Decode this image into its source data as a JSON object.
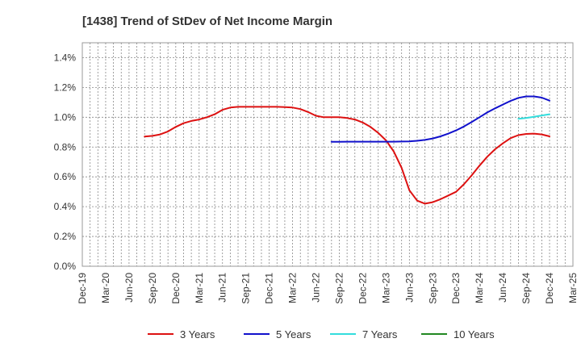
{
  "chart_data": {
    "type": "line",
    "title": "[1438]  Trend of StDev of Net Income Margin",
    "xlabel": "",
    "ylabel": "",
    "x_ticks": [
      "Dec-19",
      "Mar-20",
      "Jun-20",
      "Sep-20",
      "Dec-20",
      "Mar-21",
      "Jun-21",
      "Sep-21",
      "Dec-21",
      "Mar-22",
      "Jun-22",
      "Sep-22",
      "Dec-22",
      "Mar-23",
      "Jun-23",
      "Sep-23",
      "Dec-23",
      "Mar-24",
      "Jun-24",
      "Sep-24",
      "Dec-24",
      "Mar-25"
    ],
    "y_ticks": [
      "0.0%",
      "0.2%",
      "0.4%",
      "0.6%",
      "0.8%",
      "1.0%",
      "1.2%",
      "1.4%"
    ],
    "ylim": [
      0,
      1.5
    ],
    "y_unit": "%",
    "grid": true,
    "legend_position": "bottom",
    "series": [
      {
        "name": "3 Years",
        "color": "#dd1111",
        "points": [
          [
            "Aug-20",
            0.87
          ],
          [
            "Sep-20",
            0.875
          ],
          [
            "Oct-20",
            0.885
          ],
          [
            "Nov-20",
            0.905
          ],
          [
            "Dec-20",
            0.935
          ],
          [
            "Jan-21",
            0.96
          ],
          [
            "Feb-21",
            0.975
          ],
          [
            "Mar-21",
            0.985
          ],
          [
            "Apr-21",
            1.0
          ],
          [
            "May-21",
            1.02
          ],
          [
            "Jun-21",
            1.05
          ],
          [
            "Jul-21",
            1.065
          ],
          [
            "Aug-21",
            1.07
          ],
          [
            "Sep-21",
            1.07
          ],
          [
            "Oct-21",
            1.07
          ],
          [
            "Nov-21",
            1.07
          ],
          [
            "Dec-21",
            1.07
          ],
          [
            "Jan-22",
            1.07
          ],
          [
            "Feb-22",
            1.068
          ],
          [
            "Mar-22",
            1.065
          ],
          [
            "Apr-22",
            1.055
          ],
          [
            "May-22",
            1.035
          ],
          [
            "Jun-22",
            1.01
          ],
          [
            "Jul-22",
            1.0
          ],
          [
            "Aug-22",
            1.0
          ],
          [
            "Sep-22",
            1.0
          ],
          [
            "Oct-22",
            0.995
          ],
          [
            "Nov-22",
            0.985
          ],
          [
            "Dec-22",
            0.965
          ],
          [
            "Jan-23",
            0.935
          ],
          [
            "Feb-23",
            0.895
          ],
          [
            "Mar-23",
            0.845
          ],
          [
            "Apr-23",
            0.77
          ],
          [
            "May-23",
            0.66
          ],
          [
            "Jun-23",
            0.51
          ],
          [
            "Jul-23",
            0.44
          ],
          [
            "Aug-23",
            0.42
          ],
          [
            "Sep-23",
            0.43
          ],
          [
            "Oct-23",
            0.45
          ],
          [
            "Nov-23",
            0.475
          ],
          [
            "Dec-23",
            0.5
          ],
          [
            "Jan-24",
            0.55
          ],
          [
            "Feb-24",
            0.61
          ],
          [
            "Mar-24",
            0.675
          ],
          [
            "Apr-24",
            0.735
          ],
          [
            "May-24",
            0.785
          ],
          [
            "Jun-24",
            0.825
          ],
          [
            "Jul-24",
            0.86
          ],
          [
            "Aug-24",
            0.88
          ],
          [
            "Sep-24",
            0.888
          ],
          [
            "Oct-24",
            0.89
          ],
          [
            "Nov-24",
            0.885
          ],
          [
            "Dec-24",
            0.872
          ]
        ]
      },
      {
        "name": "5 Years",
        "color": "#1111cc",
        "points": [
          [
            "Aug-22",
            0.835
          ],
          [
            "Sep-22",
            0.835
          ],
          [
            "Oct-22",
            0.836
          ],
          [
            "Nov-22",
            0.836
          ],
          [
            "Dec-22",
            0.836
          ],
          [
            "Jan-23",
            0.836
          ],
          [
            "Feb-23",
            0.836
          ],
          [
            "Mar-23",
            0.836
          ],
          [
            "Apr-23",
            0.836
          ],
          [
            "May-23",
            0.837
          ],
          [
            "Jun-23",
            0.838
          ],
          [
            "Jul-23",
            0.842
          ],
          [
            "Aug-23",
            0.848
          ],
          [
            "Sep-23",
            0.858
          ],
          [
            "Oct-23",
            0.872
          ],
          [
            "Nov-23",
            0.89
          ],
          [
            "Dec-23",
            0.912
          ],
          [
            "Jan-24",
            0.938
          ],
          [
            "Feb-24",
            0.968
          ],
          [
            "Mar-24",
            1.0
          ],
          [
            "Apr-24",
            1.032
          ],
          [
            "May-24",
            1.06
          ],
          [
            "Jun-24",
            1.085
          ],
          [
            "Jul-24",
            1.11
          ],
          [
            "Aug-24",
            1.13
          ],
          [
            "Sep-24",
            1.14
          ],
          [
            "Oct-24",
            1.14
          ],
          [
            "Nov-24",
            1.132
          ],
          [
            "Dec-24",
            1.112
          ]
        ]
      },
      {
        "name": "7 Years",
        "color": "#33dddd",
        "points": [
          [
            "Aug-24",
            0.99
          ],
          [
            "Sep-24",
            0.995
          ],
          [
            "Oct-24",
            1.003
          ],
          [
            "Nov-24",
            1.012
          ],
          [
            "Dec-24",
            1.02
          ]
        ]
      },
      {
        "name": "10 Years",
        "color": "#228822",
        "points": []
      }
    ]
  }
}
